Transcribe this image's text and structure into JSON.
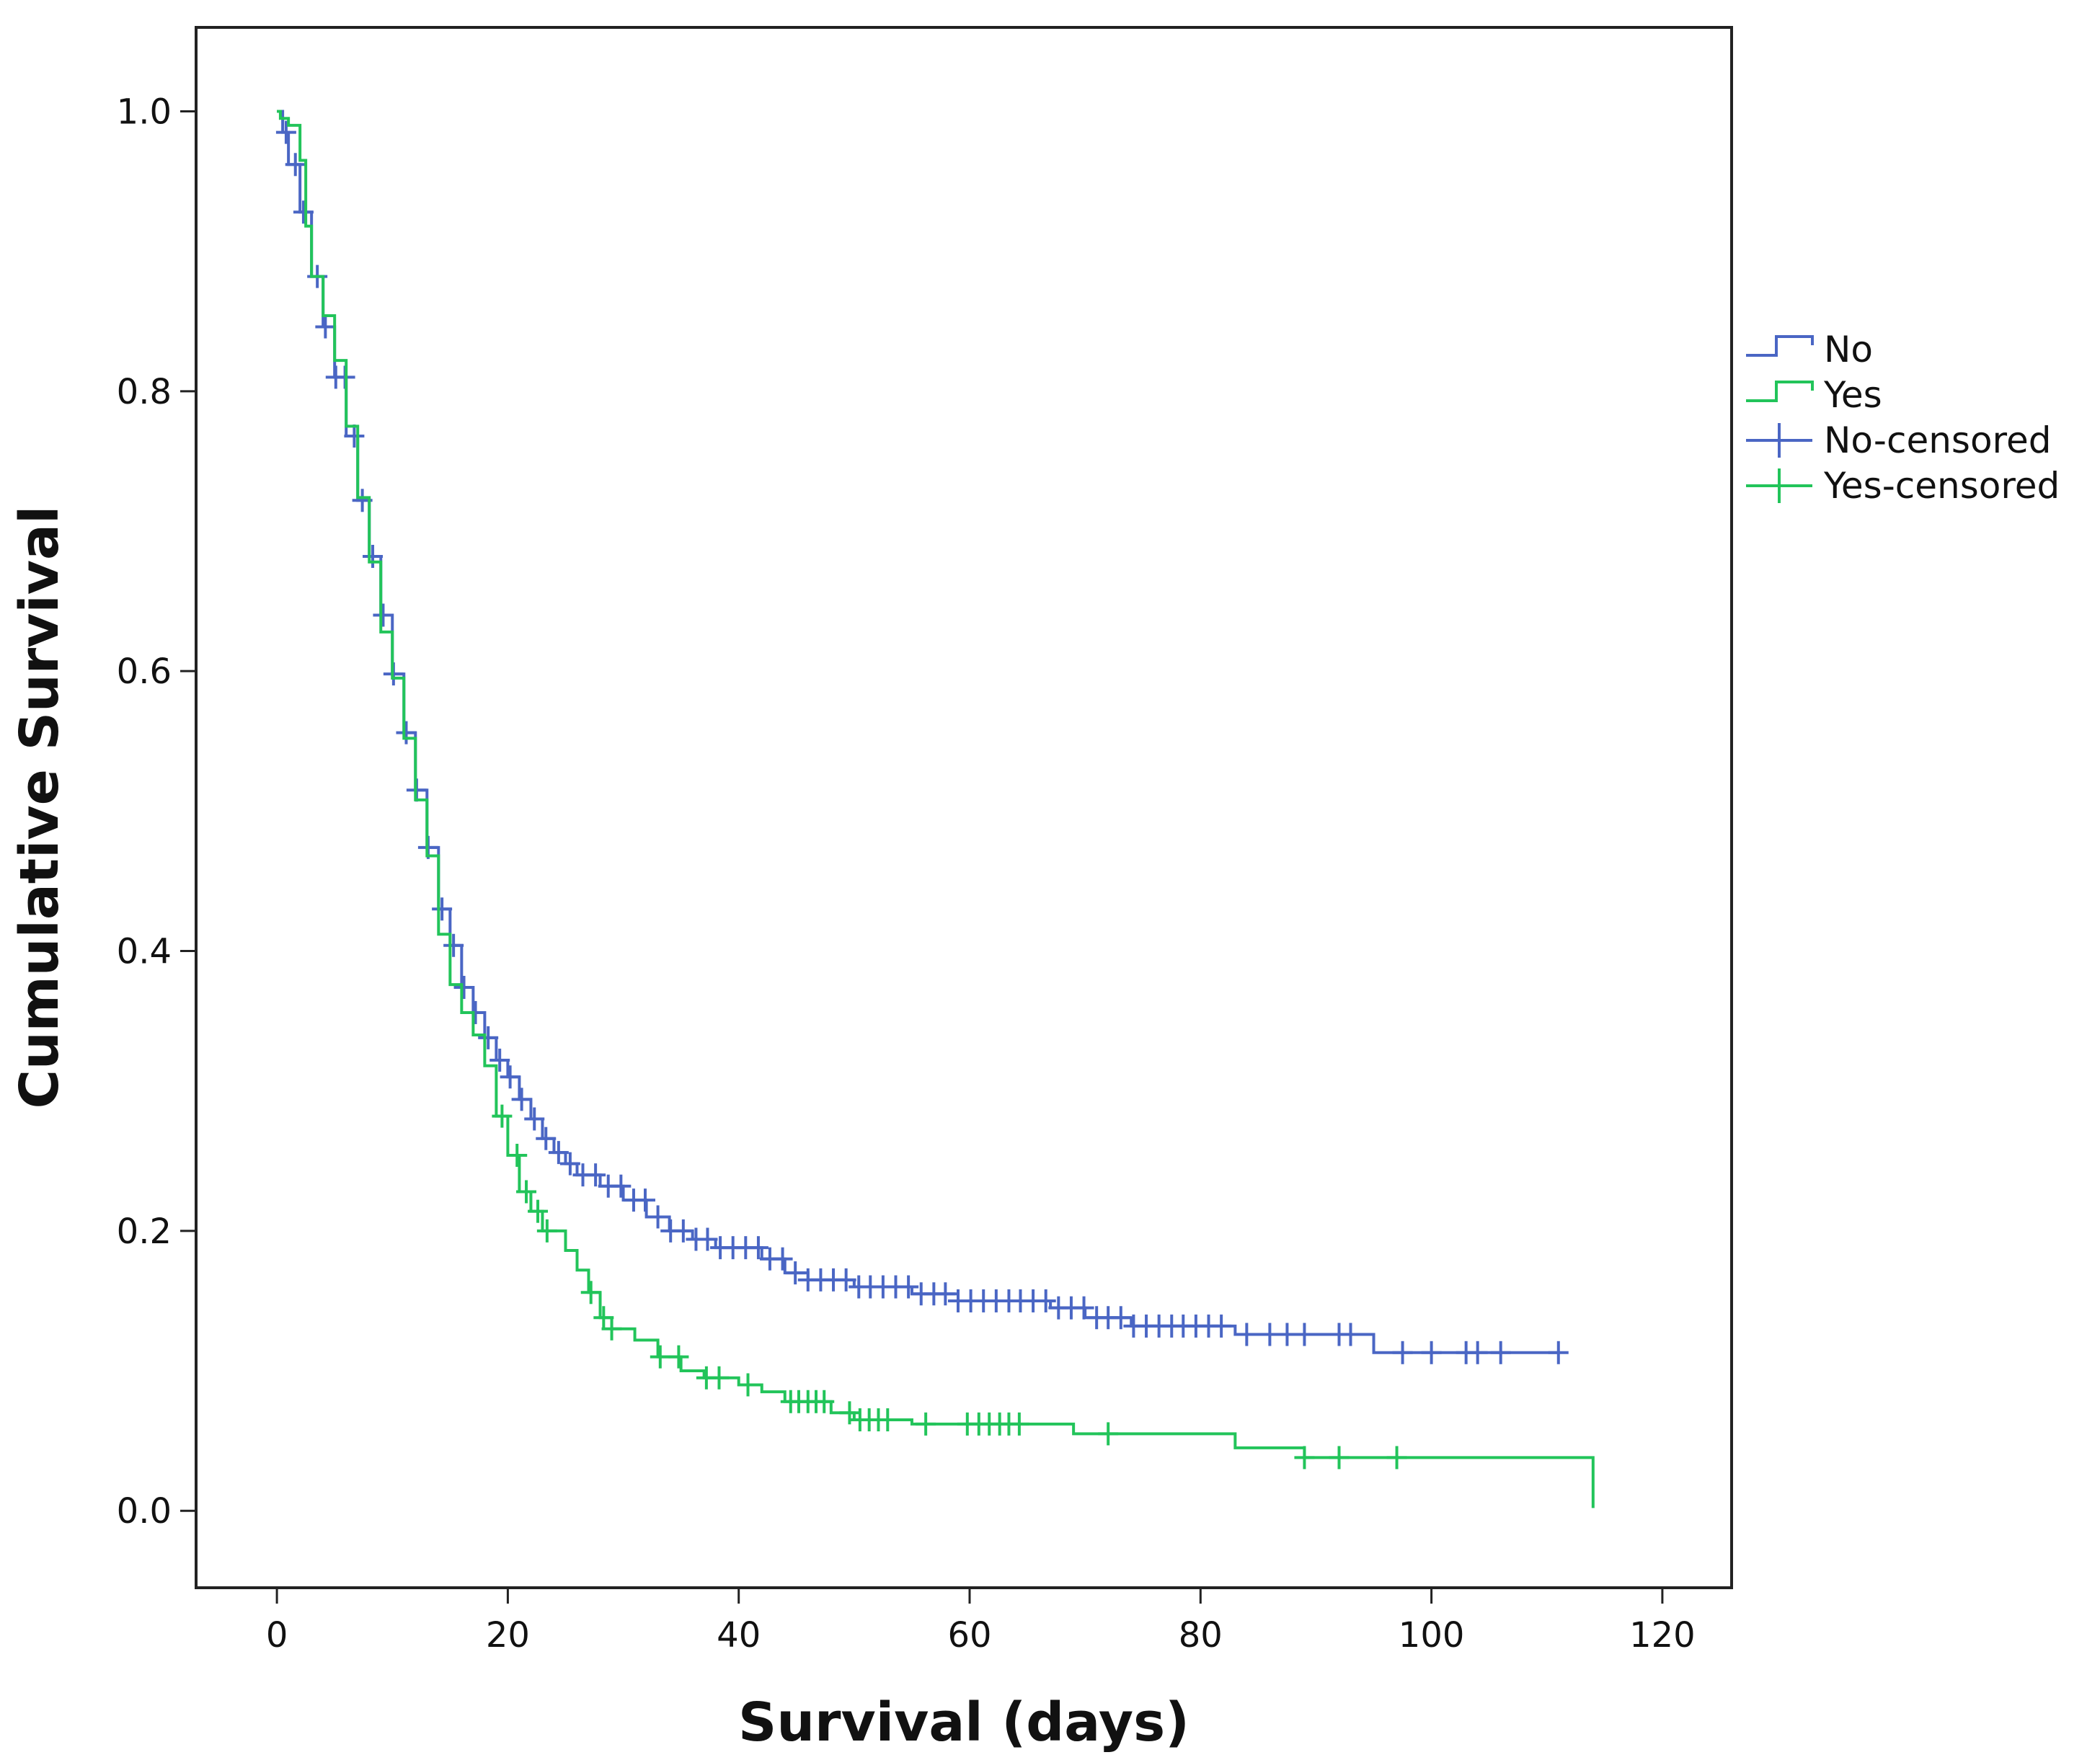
{
  "chart_data": {
    "type": "line",
    "subtype": "kaplan-meier-step",
    "xlabel": "Survival (days)",
    "ylabel": "Cumulative Survival",
    "xlim": [
      -7,
      126
    ],
    "ylim": [
      -0.055,
      1.06
    ],
    "xticks": [
      0,
      20,
      40,
      60,
      80,
      100,
      120
    ],
    "yticks": [
      0.0,
      0.2,
      0.4,
      0.6,
      0.8,
      1.0
    ],
    "xtick_labels": [
      "0",
      "20",
      "40",
      "60",
      "80",
      "100",
      "120"
    ],
    "ytick_labels": [
      "0.0",
      "0.2",
      "0.4",
      "0.6",
      "0.8",
      "1.0"
    ],
    "legend_position": "right",
    "legend": [
      {
        "label": "No",
        "kind": "step",
        "series": "No"
      },
      {
        "label": "Yes",
        "kind": "step",
        "series": "Yes"
      },
      {
        "label": "No-censored",
        "kind": "cross",
        "series": "No"
      },
      {
        "label": "Yes-censored",
        "kind": "cross",
        "series": "Yes"
      }
    ],
    "series": [
      {
        "name": "No",
        "color": "#4a66c4",
        "steps": [
          [
            0,
            1.0
          ],
          [
            0.5,
            0.985
          ],
          [
            1,
            0.962
          ],
          [
            2,
            0.928
          ],
          [
            3,
            0.882
          ],
          [
            4,
            0.846
          ],
          [
            5,
            0.81
          ],
          [
            6,
            0.768
          ],
          [
            7,
            0.722
          ],
          [
            8,
            0.682
          ],
          [
            9,
            0.64
          ],
          [
            10,
            0.598
          ],
          [
            11,
            0.556
          ],
          [
            12,
            0.515
          ],
          [
            13,
            0.474
          ],
          [
            14,
            0.43
          ],
          [
            15,
            0.404
          ],
          [
            16,
            0.374
          ],
          [
            17,
            0.356
          ],
          [
            18,
            0.338
          ],
          [
            19,
            0.322
          ],
          [
            20,
            0.31
          ],
          [
            21,
            0.294
          ],
          [
            22,
            0.28
          ],
          [
            23,
            0.266
          ],
          [
            24,
            0.256
          ],
          [
            25,
            0.248
          ],
          [
            26,
            0.24
          ],
          [
            28,
            0.232
          ],
          [
            30,
            0.222
          ],
          [
            32,
            0.21
          ],
          [
            34,
            0.2
          ],
          [
            36,
            0.194
          ],
          [
            38,
            0.188
          ],
          [
            42,
            0.18
          ],
          [
            44,
            0.17
          ],
          [
            46,
            0.165
          ],
          [
            50,
            0.16
          ],
          [
            55,
            0.155
          ],
          [
            59,
            0.15
          ],
          [
            67,
            0.145
          ],
          [
            70,
            0.138
          ],
          [
            74,
            0.132
          ],
          [
            83,
            0.126
          ],
          [
            95,
            0.113
          ],
          [
            111,
            0.113
          ]
        ],
        "censored_x": [
          0.8,
          1.6,
          2.3,
          3.5,
          4.2,
          5.1,
          5.9,
          6.7,
          7.4,
          8.3,
          9.2,
          10.1,
          11.2,
          12.1,
          13.1,
          14.3,
          15.3,
          16.2,
          17.2,
          18.3,
          19.3,
          20.2,
          21.2,
          22.3,
          23.3,
          24.4,
          25.4,
          26.5,
          27.6,
          28.7,
          29.8,
          30.9,
          31.9,
          33.0,
          34.1,
          35.2,
          36.3,
          37.3,
          38.4,
          39.5,
          40.6,
          41.7,
          42.7,
          43.8,
          44.9,
          46.0,
          47.1,
          48.2,
          49.3,
          50.4,
          51.4,
          52.5,
          53.6,
          54.7,
          55.8,
          56.9,
          57.9,
          59.0,
          60.1,
          61.2,
          62.3,
          63.4,
          64.4,
          65.5,
          66.6,
          67.7,
          68.8,
          69.9,
          71.0,
          72.0,
          73.1,
          74.2,
          75.3,
          76.4,
          77.5,
          78.5,
          79.6,
          80.7,
          81.8,
          84.0,
          86.0,
          87.5,
          89.0,
          92.0,
          93.0,
          97.5,
          100.0,
          103.0,
          104.0,
          106.0,
          111.0
        ]
      },
      {
        "name": "Yes",
        "color": "#22c45a",
        "steps": [
          [
            0,
            1.0
          ],
          [
            0.3,
            0.995
          ],
          [
            1,
            0.99
          ],
          [
            2,
            0.965
          ],
          [
            2.5,
            0.918
          ],
          [
            3,
            0.882
          ],
          [
            4,
            0.854
          ],
          [
            5,
            0.822
          ],
          [
            6,
            0.775
          ],
          [
            7,
            0.724
          ],
          [
            8,
            0.678
          ],
          [
            9,
            0.628
          ],
          [
            10,
            0.595
          ],
          [
            11,
            0.552
          ],
          [
            12,
            0.508
          ],
          [
            13,
            0.468
          ],
          [
            14,
            0.412
          ],
          [
            15,
            0.376
          ],
          [
            16,
            0.356
          ],
          [
            17,
            0.34
          ],
          [
            18,
            0.318
          ],
          [
            19,
            0.282
          ],
          [
            20,
            0.254
          ],
          [
            21,
            0.228
          ],
          [
            22,
            0.214
          ],
          [
            23,
            0.2
          ],
          [
            25,
            0.186
          ],
          [
            26,
            0.172
          ],
          [
            27,
            0.156
          ],
          [
            28,
            0.138
          ],
          [
            29,
            0.13
          ],
          [
            31,
            0.122
          ],
          [
            33,
            0.11
          ],
          [
            35,
            0.1
          ],
          [
            37,
            0.095
          ],
          [
            40,
            0.09
          ],
          [
            42,
            0.085
          ],
          [
            44,
            0.078
          ],
          [
            48,
            0.07
          ],
          [
            50,
            0.065
          ],
          [
            55,
            0.062
          ],
          [
            69,
            0.055
          ],
          [
            83,
            0.045
          ],
          [
            89,
            0.038
          ],
          [
            114,
            0.038
          ],
          [
            114,
            0.002
          ]
        ],
        "censored_x": [
          19.5,
          20.8,
          21.6,
          22.6,
          23.4,
          27.2,
          28.3,
          29.0,
          33.2,
          34.8,
          37.2,
          38.3,
          40.8,
          44.5,
          45.2,
          46.0,
          46.7,
          47.4,
          49.6,
          50.5,
          51.3,
          52.1,
          52.9,
          56.2,
          59.8,
          60.8,
          61.7,
          62.6,
          63.4,
          64.3,
          72.0,
          89.0,
          92.0,
          97.0
        ]
      }
    ]
  }
}
